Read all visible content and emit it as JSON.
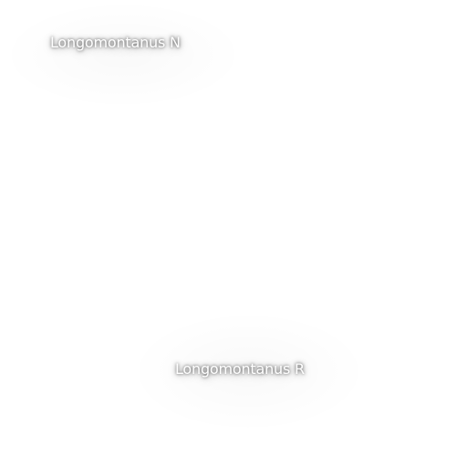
{
  "map": {
    "background_color": "#ffffff",
    "label_color": "#ffffff",
    "labels": [
      {
        "name": "Longomontanus N"
      },
      {
        "name": "Longomontanus R"
      }
    ]
  }
}
